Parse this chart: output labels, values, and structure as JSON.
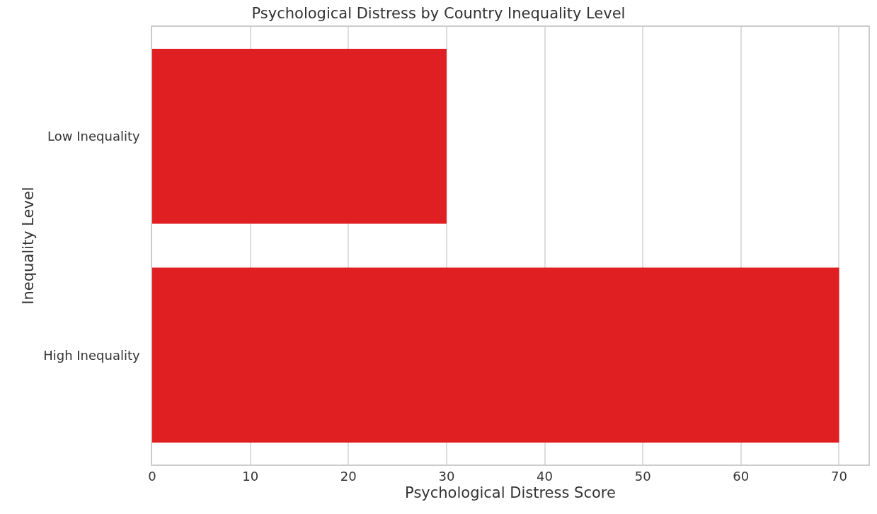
{
  "chart_data": {
    "type": "bar",
    "orientation": "horizontal",
    "title": "Psychological Distress by Country Inequality Level",
    "xlabel": "Psychological Distress Score",
    "ylabel": "Inequality Level",
    "categories": [
      "Low Inequality",
      "High Inequality"
    ],
    "values": [
      30,
      70
    ],
    "color": "#e01f22",
    "xlim": [
      0,
      73
    ],
    "xticks": [
      0,
      10,
      20,
      30,
      40,
      50,
      60,
      70
    ],
    "grid": "x"
  }
}
